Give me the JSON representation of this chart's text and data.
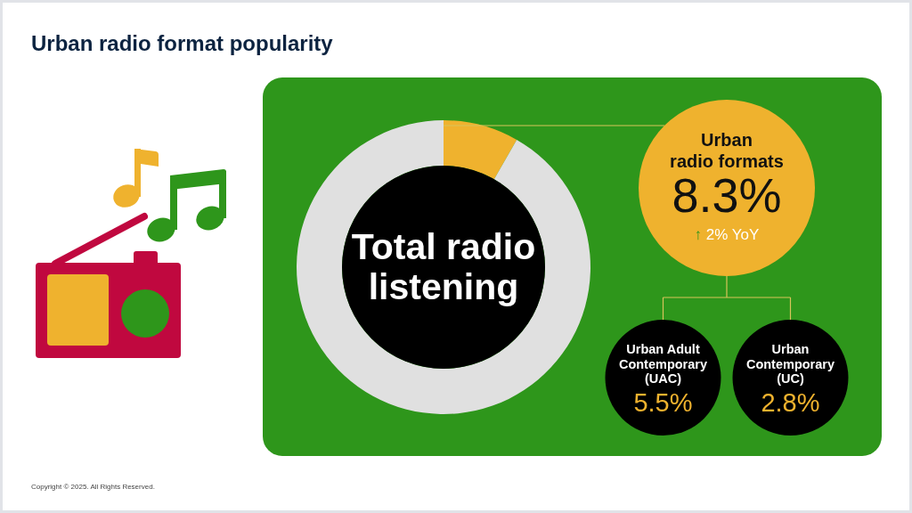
{
  "chart_data": {
    "type": "donut",
    "title": "Urban radio format popularity",
    "categories": [
      "Urban radio formats",
      null
    ],
    "values": [
      8.3,
      91.7
    ],
    "colors": [
      "#efb22e",
      "#e0e0e0"
    ],
    "value_labels": [
      "8.3%",
      null
    ],
    "annotations": [
      "Total radio listening",
      "↑ 2% YoY",
      "Urban Adult Contemporary (UAC) 5.5%",
      "Urban Contemporary (UC) 2.8%",
      "Copyright © 2025. All Rights Reserved."
    ]
  }
}
